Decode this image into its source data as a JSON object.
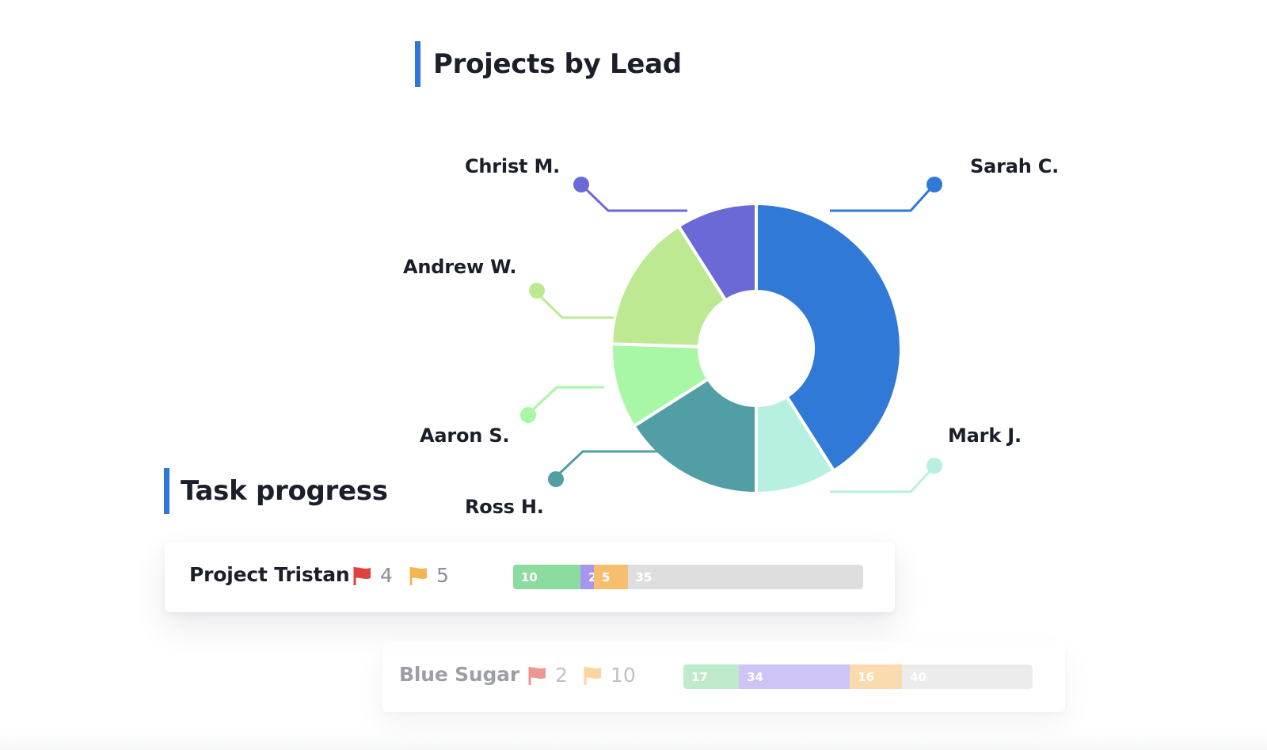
{
  "sections": {
    "projects_title": "Projects by Lead",
    "task_title": "Task progress"
  },
  "chart_data": {
    "type": "pie",
    "variant": "donut",
    "title": "Projects by Lead",
    "labels_printed": false,
    "slices": [
      {
        "name": "Sarah C.",
        "value": 41,
        "color": "#3179d6"
      },
      {
        "name": "Mark J.",
        "value": 9,
        "color": "#b7f0e0"
      },
      {
        "name": "Ross H.",
        "value": 16,
        "color": "#529ea5"
      },
      {
        "name": "Aaron S.",
        "value": 9.5,
        "color": "#a8f7a4"
      },
      {
        "name": "Andrew W.",
        "value": 15.5,
        "color": "#bde993"
      },
      {
        "name": "Christ M.",
        "value": 9,
        "color": "#6a69d6"
      }
    ]
  },
  "tasks": [
    {
      "name": "Project Tristan",
      "red_flags": "4",
      "orange_flags": "5",
      "segments": [
        {
          "label": "10",
          "value": 10,
          "color": "#8cdc9f"
        },
        {
          "label": "2",
          "value": 2,
          "color": "#a796f0"
        },
        {
          "label": "5",
          "value": 5,
          "color": "#f5bf6f"
        },
        {
          "label": "35",
          "value": 35,
          "color": "#dedede"
        }
      ]
    },
    {
      "name": "Blue Sugar",
      "red_flags": "2",
      "orange_flags": "10",
      "segments": [
        {
          "label": "17",
          "value": 17,
          "color": "#8cdc9f"
        },
        {
          "label": "34",
          "value": 34,
          "color": "#a796f0"
        },
        {
          "label": "16",
          "value": 16,
          "color": "#f5bf6f"
        },
        {
          "label": "40",
          "value": 40,
          "color": "#dedede"
        }
      ]
    }
  ],
  "colors": {
    "accent": "#2f76d6",
    "flag_red": "#e0413a",
    "flag_orange": "#f3b54f"
  },
  "icons": {
    "flag_red": "red-flag-icon",
    "flag_orange": "orange-flag-icon"
  }
}
